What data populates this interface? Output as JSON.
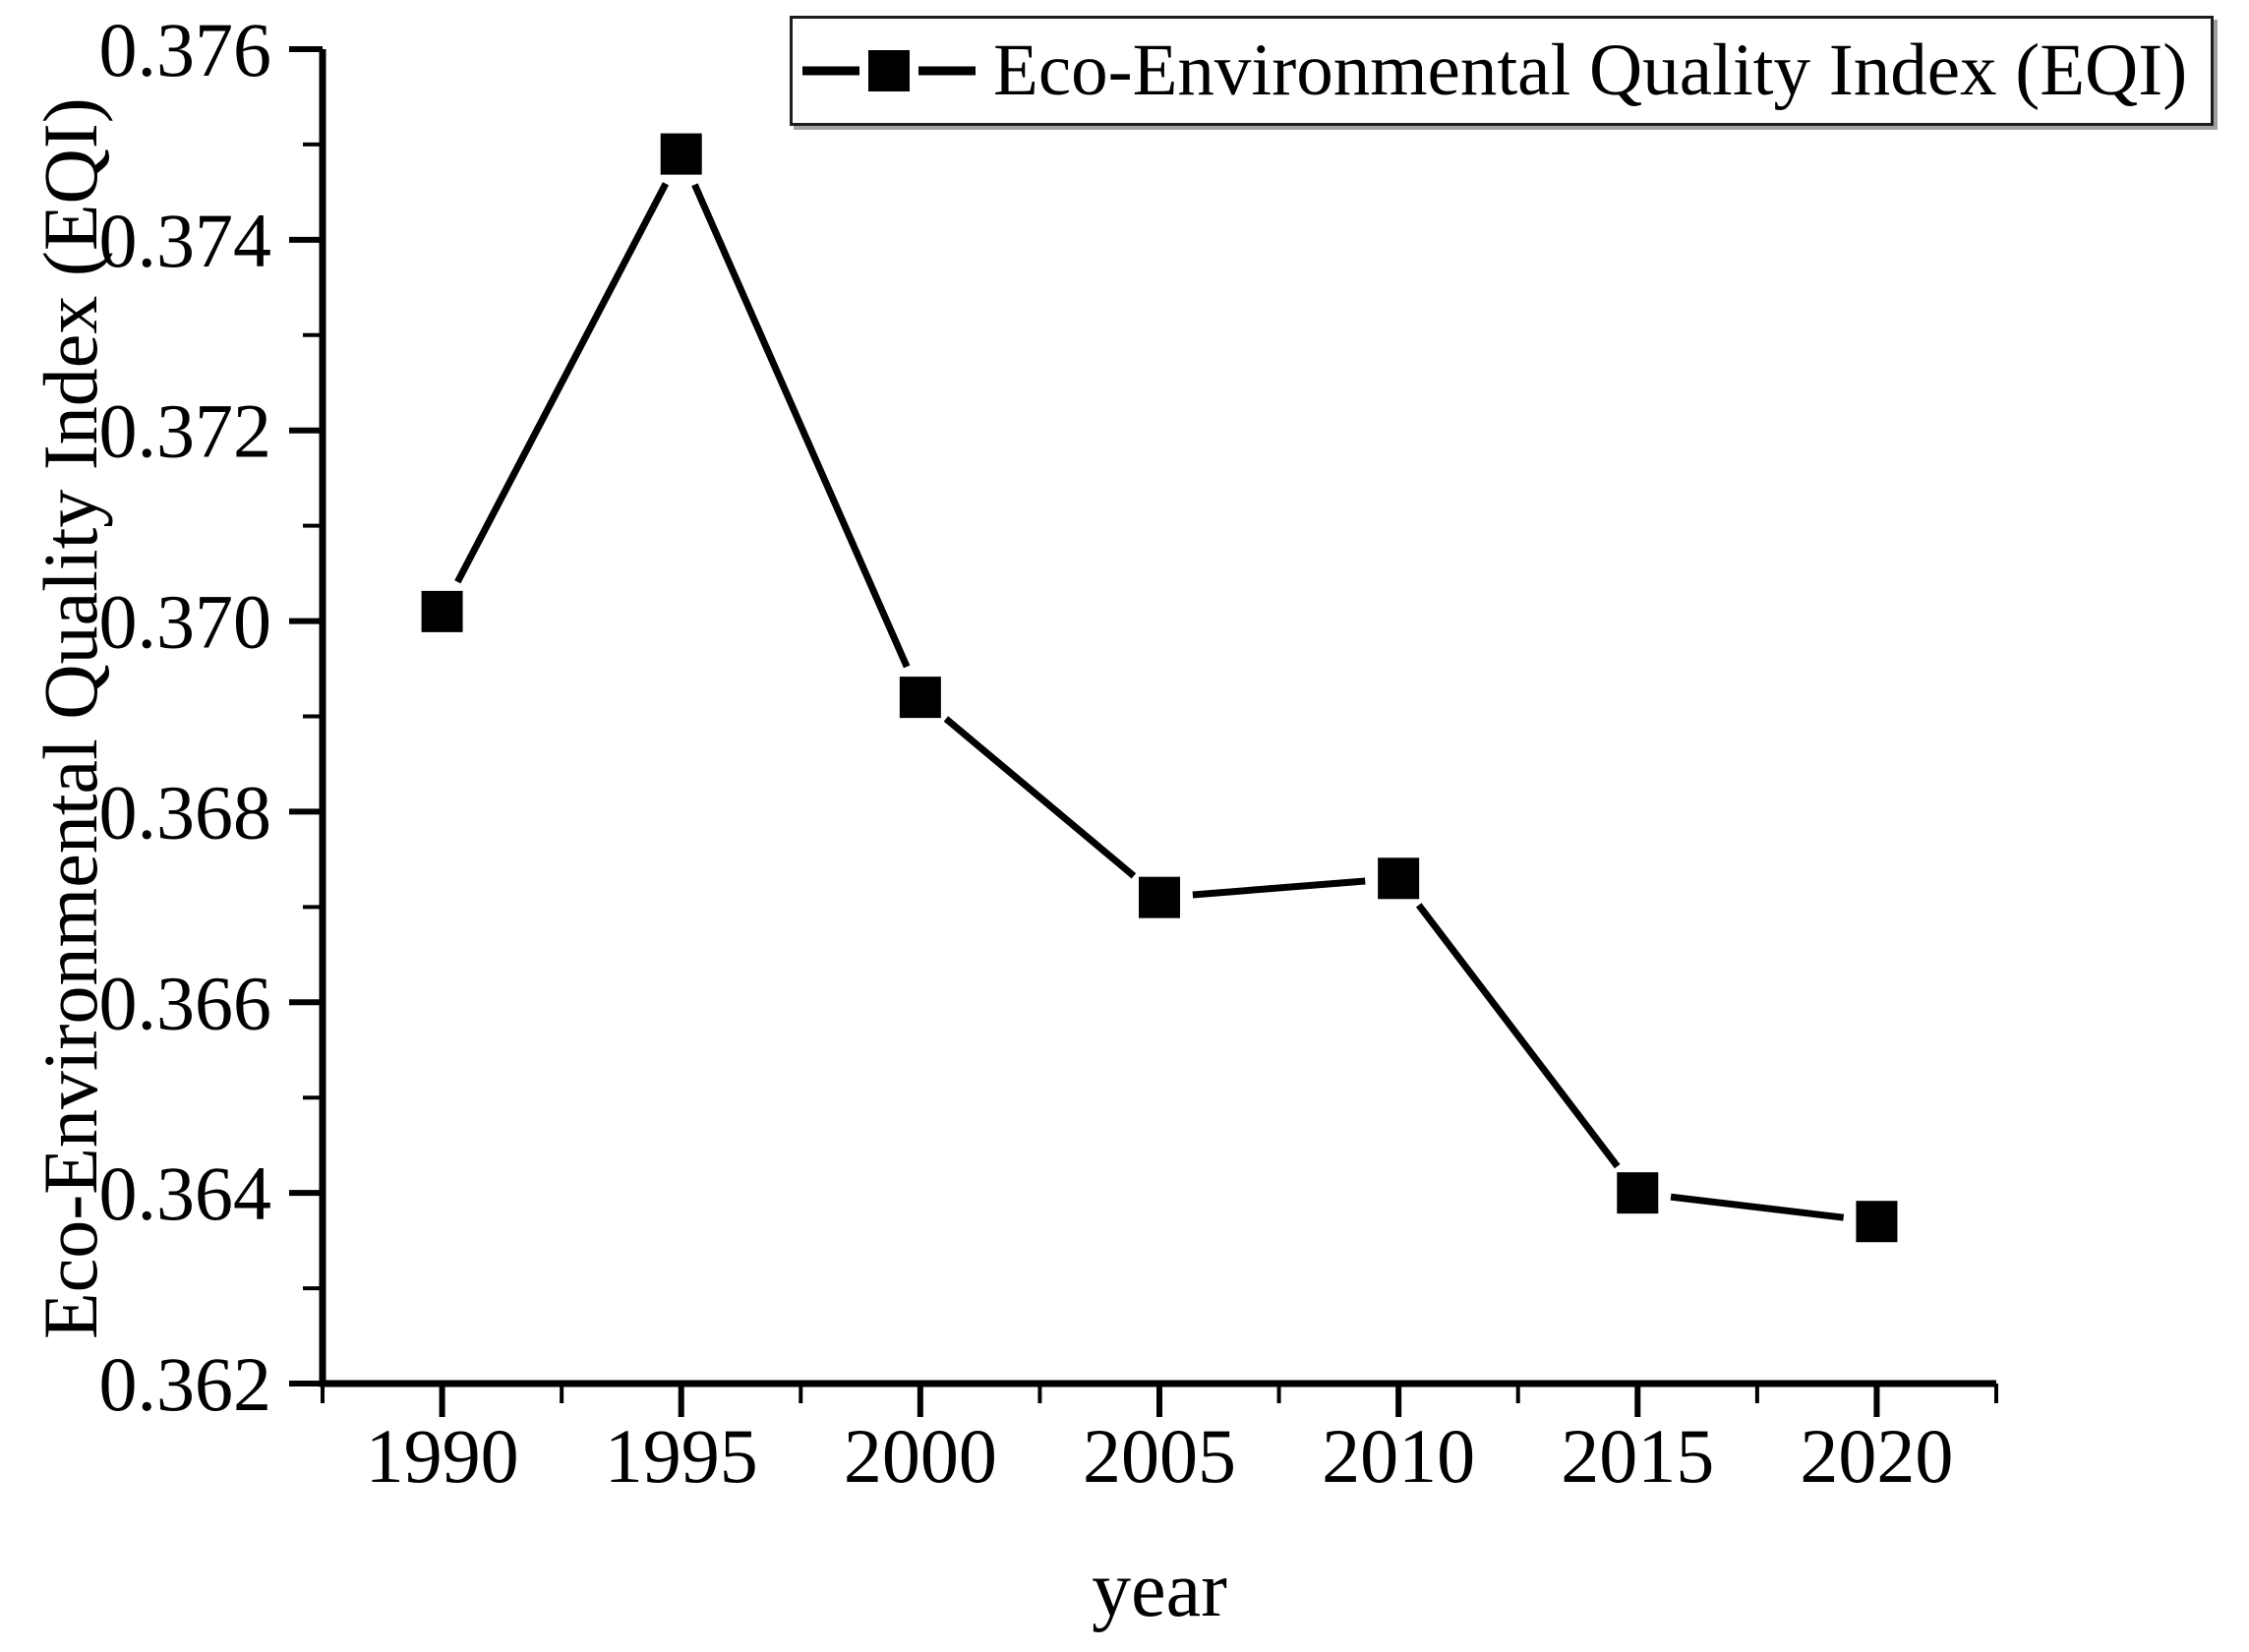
{
  "chart_data": {
    "type": "line",
    "title": "",
    "x": [
      1990,
      1995,
      2000,
      2005,
      2010,
      2015,
      2020
    ],
    "series": [
      {
        "name": "Eco-Environmental Quality Index (EQI)",
        "values": [
          0.3701,
          0.3749,
          0.3692,
          0.3671,
          0.3673,
          0.364,
          0.3637
        ],
        "color": "#000000",
        "marker": "square"
      }
    ],
    "xlabel": "year",
    "ylabel": "Eco-Environmental Quality Index (EQI)",
    "xlim": [
      1987.5,
      2022.5
    ],
    "ylim": [
      0.362,
      0.376
    ],
    "x_ticks": {
      "values": [
        1990,
        1995,
        2000,
        2005,
        2010,
        2015,
        2020
      ],
      "labels": [
        "1990",
        "1995",
        "2000",
        "2005",
        "2010",
        "2015",
        "2020"
      ]
    },
    "y_ticks": {
      "values": [
        0.362,
        0.364,
        0.366,
        0.368,
        0.37,
        0.372,
        0.374,
        0.376
      ],
      "labels": [
        "0.362",
        "0.364",
        "0.366",
        "0.368",
        "0.370",
        "0.372",
        "0.374",
        "0.376"
      ]
    },
    "x_minor_ticks": [
      1987.5,
      1992.5,
      1997.5,
      2002.5,
      2007.5,
      2012.5,
      2017.5,
      2022.5
    ],
    "y_minor_ticks": [
      0.363,
      0.365,
      0.367,
      0.369,
      0.371,
      0.373,
      0.375
    ],
    "grid": false,
    "legend_position": "top-right",
    "axis_color": "#000000",
    "background": "#ffffff"
  }
}
